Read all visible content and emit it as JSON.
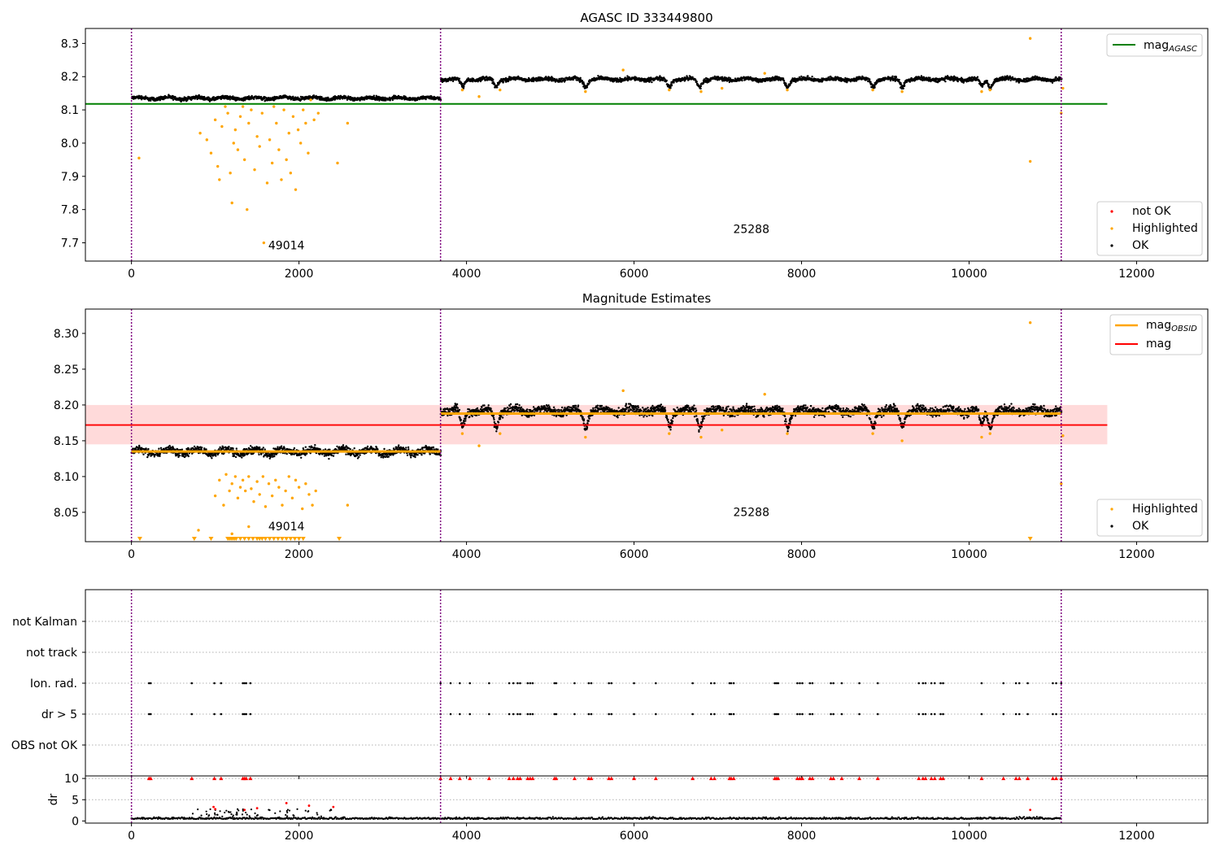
{
  "colors": {
    "ok": "#000000",
    "highlighted": "#ffa500",
    "not_ok": "#ff0000",
    "mag_agasc": "#008000",
    "mag_obsid": "#ffa500",
    "mag": "#ff0000",
    "mag_band": "#ffdada",
    "obs_boundary": "#800080",
    "grid": "#b0b0b0"
  },
  "chart_data": [
    {
      "type": "scatter",
      "title": "AGASC ID 333449800",
      "xlim": [
        -550,
        12850
      ],
      "ylim": [
        7.645,
        8.345
      ],
      "x_ticks": [
        0,
        2000,
        4000,
        6000,
        8000,
        10000,
        12000
      ],
      "y_ticks": [
        7.7,
        7.8,
        7.9,
        8.0,
        8.1,
        8.2,
        8.3
      ],
      "y_tick_labels": [
        "7.7",
        "7.8",
        "7.9",
        "8.0",
        "8.1",
        "8.2",
        "8.3"
      ],
      "obs_boundaries": [
        0,
        3690,
        11100
      ],
      "annotations": [
        {
          "text": "49014",
          "x": 1850,
          "y": 7.68
        },
        {
          "text": "25288",
          "x": 7400,
          "y": 7.73
        }
      ],
      "mag_agasc": {
        "value": 8.118,
        "x_range": [
          0,
          11650
        ]
      },
      "legend_lines": {
        "label": "mag",
        "sub": "AGASC",
        "position": "upper right"
      },
      "legend_points": {
        "entries": [
          "not OK",
          "Highlighted",
          "OK"
        ],
        "position": "lower right"
      },
      "ok_segments": [
        {
          "x0": 0,
          "x1": 3690,
          "level": 8.135,
          "spread": 0.008
        },
        {
          "x0": 3690,
          "x1": 11100,
          "level": 8.192,
          "spread": 0.009
        }
      ],
      "ok_dips": [
        3950,
        4350,
        5420,
        6420,
        6780,
        7830,
        8850,
        9200,
        10150,
        10250
      ],
      "highlighted_points": [
        [
          90,
          7.955
        ],
        [
          820,
          8.03
        ],
        [
          900,
          8.01
        ],
        [
          950,
          7.97
        ],
        [
          1000,
          8.07
        ],
        [
          1030,
          7.93
        ],
        [
          1050,
          7.89
        ],
        [
          1080,
          8.05
        ],
        [
          1120,
          8.11
        ],
        [
          1150,
          8.09
        ],
        [
          1180,
          7.91
        ],
        [
          1200,
          7.82
        ],
        [
          1220,
          8.0
        ],
        [
          1240,
          8.04
        ],
        [
          1270,
          7.98
        ],
        [
          1300,
          8.08
        ],
        [
          1330,
          8.11
        ],
        [
          1350,
          7.95
        ],
        [
          1380,
          7.8
        ],
        [
          1400,
          8.06
        ],
        [
          1430,
          8.1
        ],
        [
          1470,
          7.92
        ],
        [
          1500,
          8.02
        ],
        [
          1530,
          7.99
        ],
        [
          1560,
          8.09
        ],
        [
          1580,
          7.7
        ],
        [
          1620,
          7.88
        ],
        [
          1650,
          8.01
        ],
        [
          1680,
          7.94
        ],
        [
          1700,
          8.11
        ],
        [
          1730,
          8.06
        ],
        [
          1760,
          7.98
        ],
        [
          1790,
          7.89
        ],
        [
          1820,
          8.1
        ],
        [
          1850,
          7.95
        ],
        [
          1880,
          8.03
        ],
        [
          1900,
          7.91
        ],
        [
          1930,
          8.08
        ],
        [
          1960,
          7.86
        ],
        [
          1990,
          8.04
        ],
        [
          2020,
          8.0
        ],
        [
          2050,
          8.1
        ],
        [
          2080,
          8.06
        ],
        [
          2110,
          7.97
        ],
        [
          2140,
          8.13
        ],
        [
          2180,
          8.07
        ],
        [
          2230,
          8.09
        ],
        [
          2460,
          7.94
        ],
        [
          2580,
          8.06
        ],
        [
          3950,
          8.16
        ],
        [
          4150,
          8.14
        ],
        [
          4400,
          8.16
        ],
        [
          5420,
          8.155
        ],
        [
          5870,
          8.22
        ],
        [
          6420,
          8.16
        ],
        [
          6800,
          8.155
        ],
        [
          7050,
          8.165
        ],
        [
          7560,
          8.21
        ],
        [
          7830,
          8.16
        ],
        [
          8850,
          8.16
        ],
        [
          9200,
          8.155
        ],
        [
          10150,
          8.155
        ],
        [
          10250,
          8.16
        ],
        [
          10730,
          8.315
        ],
        [
          10730,
          7.945
        ],
        [
          11100,
          8.09
        ],
        [
          11120,
          8.165
        ]
      ]
    },
    {
      "type": "scatter",
      "title": "Magnitude Estimates",
      "xlim": [
        -550,
        12850
      ],
      "ylim": [
        8.009,
        8.334
      ],
      "x_ticks": [
        0,
        2000,
        4000,
        6000,
        8000,
        10000,
        12000
      ],
      "y_ticks": [
        8.05,
        8.1,
        8.15,
        8.2,
        8.25,
        8.3
      ],
      "y_tick_labels": [
        "8.05",
        "8.10",
        "8.15",
        "8.20",
        "8.25",
        "8.30"
      ],
      "obs_boundaries": [
        0,
        3690,
        11100
      ],
      "annotations": [
        {
          "text": "49014",
          "x": 1850,
          "y": 8.025
        },
        {
          "text": "25288",
          "x": 7400,
          "y": 8.045
        }
      ],
      "mag": {
        "value": 8.172,
        "band": [
          8.145,
          8.2
        ],
        "x_range": [
          0,
          11650
        ]
      },
      "mag_obsid": [
        {
          "x0": 0,
          "x1": 3690,
          "value": 8.135
        },
        {
          "x0": 3690,
          "x1": 11100,
          "value": 8.188
        }
      ],
      "legend_lines": {
        "entries": [
          "mag",
          "mag"
        ],
        "sub": "OBSID",
        "position": "upper right"
      },
      "legend_points": {
        "entries": [
          "Highlighted",
          "OK"
        ],
        "position": "lower right"
      },
      "ok_segments": [
        {
          "x0": 0,
          "x1": 3690,
          "level": 8.135,
          "spread": 0.008
        },
        {
          "x0": 3690,
          "x1": 11100,
          "level": 8.192,
          "spread": 0.009
        }
      ],
      "ok_dips": [
        3950,
        4350,
        5420,
        6420,
        6780,
        7830,
        8850,
        9200,
        10150,
        10250
      ],
      "highlighted_points": [
        [
          1000,
          8.073
        ],
        [
          1050,
          8.095
        ],
        [
          1100,
          8.06
        ],
        [
          1130,
          8.103
        ],
        [
          1170,
          8.08
        ],
        [
          1200,
          8.09
        ],
        [
          1240,
          8.1
        ],
        [
          1270,
          8.07
        ],
        [
          1300,
          8.085
        ],
        [
          1330,
          8.095
        ],
        [
          1360,
          8.08
        ],
        [
          1400,
          8.1
        ],
        [
          1430,
          8.083
        ],
        [
          1460,
          8.065
        ],
        [
          1500,
          8.093
        ],
        [
          1530,
          8.075
        ],
        [
          1570,
          8.1
        ],
        [
          1600,
          8.058
        ],
        [
          1640,
          8.09
        ],
        [
          1680,
          8.073
        ],
        [
          1720,
          8.095
        ],
        [
          1760,
          8.085
        ],
        [
          1800,
          8.06
        ],
        [
          1840,
          8.08
        ],
        [
          1880,
          8.1
        ],
        [
          1920,
          8.07
        ],
        [
          1960,
          8.095
        ],
        [
          2000,
          8.085
        ],
        [
          2040,
          8.055
        ],
        [
          2080,
          8.09
        ],
        [
          2120,
          8.075
        ],
        [
          2160,
          8.06
        ],
        [
          2200,
          8.08
        ],
        [
          2580,
          8.06
        ],
        [
          800,
          8.025
        ],
        [
          1200,
          8.02
        ],
        [
          1400,
          8.03
        ],
        [
          3950,
          8.16
        ],
        [
          4150,
          8.143
        ],
        [
          4400,
          8.16
        ],
        [
          5420,
          8.155
        ],
        [
          5870,
          8.22
        ],
        [
          6420,
          8.16
        ],
        [
          6800,
          8.155
        ],
        [
          7050,
          8.165
        ],
        [
          7560,
          8.215
        ],
        [
          7830,
          8.16
        ],
        [
          8850,
          8.16
        ],
        [
          9200,
          8.15
        ],
        [
          10150,
          8.155
        ],
        [
          10250,
          8.16
        ],
        [
          10730,
          8.315
        ],
        [
          11100,
          8.09
        ],
        [
          11120,
          8.157
        ]
      ],
      "floor_markers_x": [
        100,
        750,
        950,
        1150,
        1170,
        1190,
        1210,
        1230,
        1250,
        1300,
        1350,
        1400,
        1450,
        1500,
        1530,
        1560,
        1600,
        1650,
        1700,
        1750,
        1800,
        1850,
        1900,
        1950,
        2000,
        2050,
        2480,
        10730
      ]
    },
    {
      "type": "scatter",
      "xlim": [
        -550,
        12850
      ],
      "x_ticks": [
        0,
        2000,
        4000,
        6000,
        8000,
        10000,
        12000
      ],
      "y_categories": [
        "not Kalman",
        "not track",
        "Ion. rad.",
        "dr > 5",
        "OBS not OK"
      ],
      "obs_boundaries": [
        0,
        3690,
        11100
      ],
      "flag_x": [
        210,
        230,
        720,
        990,
        1070,
        1330,
        1350,
        1370,
        1420,
        3690,
        3810,
        3920,
        4040,
        4270,
        4510,
        4560,
        4610,
        4640,
        4730,
        4760,
        4790,
        5050,
        5070,
        5290,
        5460,
        5490,
        5700,
        5730,
        6000,
        6260,
        6700,
        6920,
        6960,
        7140,
        7160,
        7190,
        7680,
        7700,
        7720,
        7950,
        7980,
        8010,
        8100,
        8130,
        8350,
        8380,
        8480,
        8690,
        8910,
        9400,
        9450,
        9480,
        9550,
        9590,
        9660,
        9690,
        10150,
        10410,
        10560,
        10600,
        10700,
        11000,
        11040,
        11100
      ],
      "ion_rad_rows": [
        "Ion. rad.",
        "dr > 5"
      ]
    },
    {
      "type": "scatter",
      "ylabel": "dr",
      "xlim": [
        -550,
        12850
      ],
      "ylim": [
        -0.5,
        10.6
      ],
      "x_ticks": [
        0,
        2000,
        4000,
        6000,
        8000,
        10000,
        12000
      ],
      "x_tick_labels": [
        "0",
        "2000",
        "4000",
        "6000",
        "8000",
        "10000",
        "12000"
      ],
      "y_ticks": [
        0,
        5,
        10
      ],
      "y_tick_labels": [
        "0",
        "5",
        "10"
      ],
      "obs_boundaries": [
        0,
        3690,
        11100
      ],
      "ok_level": 0.45,
      "red_points": [
        [
          980,
          3.3
        ],
        [
          1000,
          2.8
        ],
        [
          1350,
          2.6
        ],
        [
          1500,
          3.0
        ],
        [
          1850,
          4.2
        ],
        [
          2120,
          3.6
        ],
        [
          2410,
          3.3
        ],
        [
          10730,
          2.6
        ]
      ],
      "cap_value": 10
    }
  ]
}
